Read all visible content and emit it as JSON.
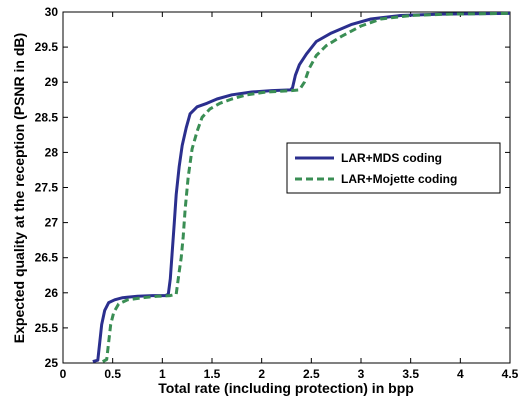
{
  "chart_data": {
    "type": "line",
    "title": "",
    "xlabel": "Total rate (including protection) in bpp",
    "ylabel": "Expected quality at the reception (PSNR in dB)",
    "xlim": [
      0,
      4.5
    ],
    "ylim": [
      25,
      30
    ],
    "x_ticks": [
      0,
      0.5,
      1,
      1.5,
      2,
      2.5,
      3,
      3.5,
      4,
      4.5
    ],
    "x_tick_labels": [
      "0",
      "0.5",
      "1",
      "1.5",
      "2",
      "2.5",
      "3",
      "3.5",
      "4",
      "4.5"
    ],
    "y_ticks": [
      25,
      25.5,
      26,
      26.5,
      27,
      27.5,
      28,
      28.5,
      29,
      29.5,
      30
    ],
    "y_tick_labels": [
      "25",
      "25.5",
      "26",
      "26.5",
      "27",
      "27.5",
      "28",
      "28.5",
      "29",
      "29.5",
      "30"
    ],
    "grid": false,
    "legend_position": "right-middle",
    "series": [
      {
        "name": "LAR+MDS coding",
        "color": "#2b2f8e",
        "line_style": "solid",
        "points": [
          [
            0.3,
            25.02
          ],
          [
            0.35,
            25.04
          ],
          [
            0.37,
            25.3
          ],
          [
            0.39,
            25.55
          ],
          [
            0.42,
            25.75
          ],
          [
            0.46,
            25.86
          ],
          [
            0.52,
            25.9
          ],
          [
            0.6,
            25.93
          ],
          [
            0.75,
            25.95
          ],
          [
            0.9,
            25.96
          ],
          [
            1.03,
            25.96
          ],
          [
            1.06,
            25.98
          ],
          [
            1.08,
            26.2
          ],
          [
            1.1,
            26.6
          ],
          [
            1.12,
            27.0
          ],
          [
            1.14,
            27.4
          ],
          [
            1.17,
            27.8
          ],
          [
            1.2,
            28.1
          ],
          [
            1.24,
            28.35
          ],
          [
            1.28,
            28.55
          ],
          [
            1.35,
            28.65
          ],
          [
            1.45,
            28.7
          ],
          [
            1.55,
            28.76
          ],
          [
            1.7,
            28.82
          ],
          [
            1.9,
            28.86
          ],
          [
            2.1,
            28.88
          ],
          [
            2.29,
            28.89
          ],
          [
            2.31,
            28.92
          ],
          [
            2.34,
            29.1
          ],
          [
            2.38,
            29.25
          ],
          [
            2.45,
            29.4
          ],
          [
            2.55,
            29.58
          ],
          [
            2.7,
            29.7
          ],
          [
            2.9,
            29.82
          ],
          [
            3.1,
            29.9
          ],
          [
            3.4,
            29.95
          ],
          [
            3.8,
            29.97
          ],
          [
            4.5,
            29.98
          ]
        ]
      },
      {
        "name": "LAR+Mojette coding",
        "color": "#3a8e54",
        "line_style": "dashed",
        "points": [
          [
            0.4,
            25.02
          ],
          [
            0.44,
            25.05
          ],
          [
            0.46,
            25.3
          ],
          [
            0.48,
            25.55
          ],
          [
            0.51,
            25.72
          ],
          [
            0.56,
            25.84
          ],
          [
            0.65,
            25.9
          ],
          [
            0.8,
            25.93
          ],
          [
            0.95,
            25.95
          ],
          [
            1.08,
            25.96
          ],
          [
            1.14,
            25.98
          ],
          [
            1.17,
            26.3
          ],
          [
            1.19,
            26.5
          ],
          [
            1.21,
            26.8
          ],
          [
            1.23,
            27.2
          ],
          [
            1.26,
            27.65
          ],
          [
            1.3,
            28.05
          ],
          [
            1.35,
            28.3
          ],
          [
            1.4,
            28.5
          ],
          [
            1.48,
            28.62
          ],
          [
            1.58,
            28.7
          ],
          [
            1.7,
            28.76
          ],
          [
            1.85,
            28.82
          ],
          [
            2.05,
            28.86
          ],
          [
            2.3,
            28.88
          ],
          [
            2.38,
            28.89
          ],
          [
            2.43,
            29.0
          ],
          [
            2.48,
            29.2
          ],
          [
            2.55,
            29.38
          ],
          [
            2.65,
            29.52
          ],
          [
            2.8,
            29.65
          ],
          [
            3.0,
            29.8
          ],
          [
            3.2,
            29.9
          ],
          [
            3.5,
            29.95
          ],
          [
            3.9,
            29.97
          ],
          [
            4.5,
            29.98
          ]
        ]
      }
    ]
  }
}
